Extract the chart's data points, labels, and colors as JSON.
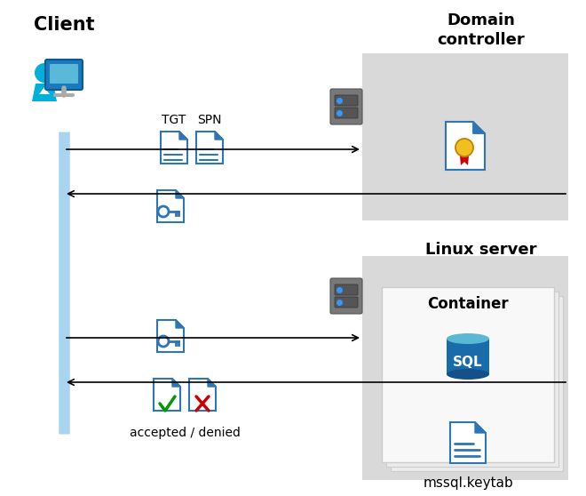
{
  "bg_color": "#ffffff",
  "client_label": "Client",
  "domain_label": "Domain\ncontroller",
  "linux_label": "Linux server",
  "container_label": "Container",
  "tgt_label": "TGT",
  "spn_label": "SPN",
  "accepted_denied_label": "accepted / denied",
  "mssql_label": "mssql.keytab",
  "box_color": "#d9d9d9",
  "blue_line_color": "#a8d4f0",
  "doc_blue": "#2e75b6",
  "doc_light": "#ffffff",
  "doc_edge": "#2e75b6",
  "server_dark": "#5a5a5a",
  "server_mid": "#7a7a7a",
  "sql_blue_top": "#5bb8d4",
  "sql_blue_mid": "#1a6baa",
  "sql_blue_bot": "#14518a",
  "check_green": "#009900",
  "cross_red": "#cc0000",
  "arrow_color": "#000000",
  "cert_yellow": "#f0c020",
  "cert_red": "#cc0000",
  "client_blue": "#00b0d8",
  "client_dark": "#0078a8",
  "monitor_blue": "#1a7abf",
  "monitor_dark": "#0d5a8f",
  "monitor_stand": "#aaaaaa",
  "screen_light": "#5ab8d8"
}
